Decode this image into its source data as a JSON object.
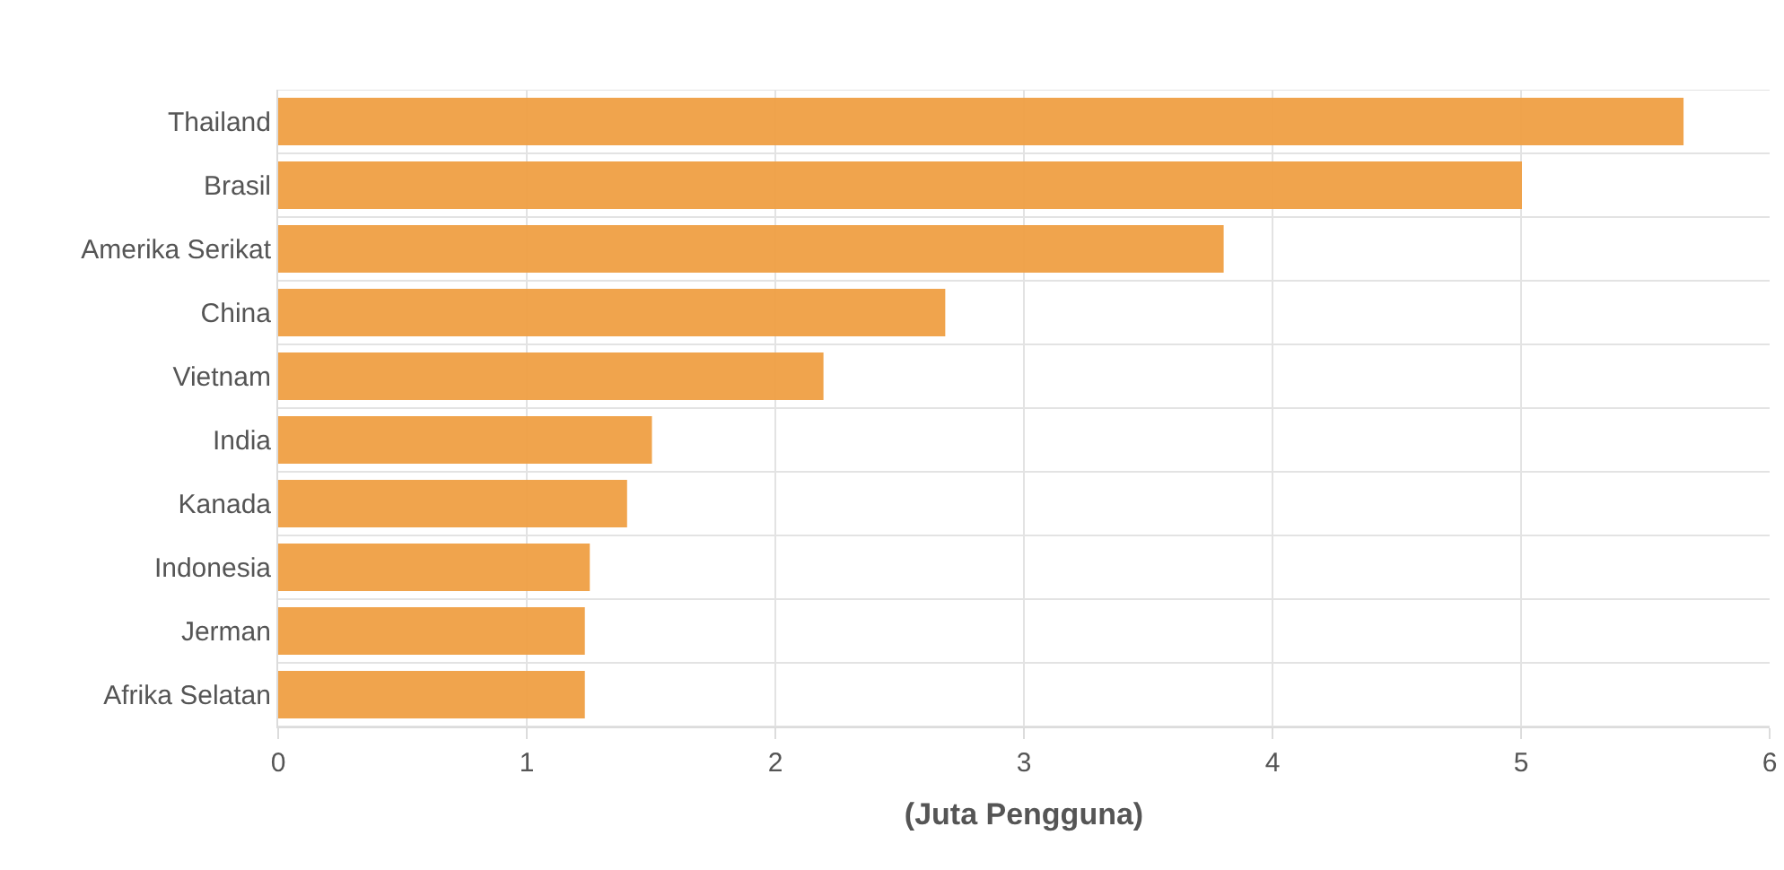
{
  "chart_data": {
    "type": "bar",
    "orientation": "horizontal",
    "xlabel": "(Juta Pengguna)",
    "categories": [
      "Thailand",
      "Brasil",
      "Amerika Serikat",
      "China",
      "Vietnam",
      "India",
      "Kanada",
      "Indonesia",
      "Jerman",
      "Afrika Selatan"
    ],
    "values": [
      5.65,
      5.0,
      3.8,
      2.68,
      2.19,
      1.5,
      1.4,
      1.25,
      1.23,
      1.23
    ],
    "color": "#f0a044",
    "xlim": [
      0,
      6
    ],
    "xticks": [
      0,
      1,
      2,
      3,
      4,
      5,
      6
    ],
    "grid": true,
    "legend": false
  }
}
